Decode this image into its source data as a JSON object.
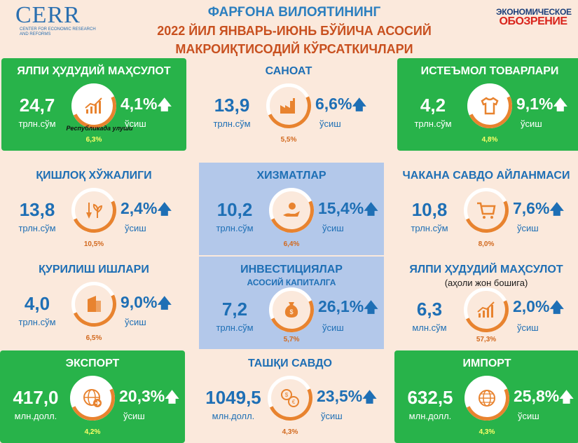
{
  "header": {
    "title_line1": "ФАРҒОНА ВИЛОЯТИНИНГ",
    "title_line2": "2022 ЙИЛ ЯНВАРЬ-ИЮНЬ БЎЙИЧА АСОСИЙ",
    "title_line3": "МАКРОИҚТИСОДИЙ КЎРСАТКИЧЛАРИ",
    "logo_left": "CERR",
    "logo_left_small": "CENTER FOR ECONOMIC RESEARCH AND REFORMS",
    "logo_right_line1": "ЭКОНОМИЧЕСКОЕ",
    "logo_right_line2": "ОБОЗРЕНИЕ"
  },
  "tiles": [
    {
      "name": "ЯЛПИ ҲУДУДИЙ МАҲСУЛОТ",
      "value": "24,7",
      "unit": "трлн.сўм",
      "growth": "4,1%",
      "growth_label": "ўсиш",
      "share_label": "Республикада улуши",
      "share": "6,3%",
      "icon": "chart-growth-icon"
    },
    {
      "name": "САНОАТ",
      "value": "13,9",
      "unit": "трлн.сўм",
      "growth": "6,6%",
      "growth_label": "ўсиш",
      "share": "5,5%",
      "icon": "factory-icon"
    },
    {
      "name": "ИСТЕЪМОЛ ТОВАРЛАРИ",
      "value": "4,2",
      "unit": "трлн.сўм",
      "growth": "9,1%",
      "growth_label": "ўсиш",
      "share": "4,8%",
      "icon": "tshirt-icon"
    },
    {
      "name": "ҚИШЛОҚ ХЎЖАЛИГИ",
      "value": "13,8",
      "unit": "трлн.сўм",
      "growth": "2,4%",
      "growth_label": "ўсиш",
      "share": "10,5%",
      "icon": "shovel-plant-icon"
    },
    {
      "name": "ХИЗМАТЛАР",
      "value": "10,2",
      "unit": "трлн.сўм",
      "growth": "15,4%",
      "growth_label": "ўсиш",
      "share": "6,4%",
      "icon": "service-hand-icon"
    },
    {
      "name": "ЧАКАНА САВДО АЙЛАНМАСИ",
      "value": "10,8",
      "unit": "трлн.сўм",
      "growth": "7,6%",
      "growth_label": "ўсиш",
      "share": "8,0%",
      "icon": "shopping-cart-icon"
    },
    {
      "name": "ҚУРИЛИШ ИШЛАРИ",
      "value": "4,0",
      "unit": "трлн.сўм",
      "growth": "9,0%",
      "growth_label": "ўсиш",
      "share": "6,5%",
      "icon": "building-icon"
    },
    {
      "name": "ИНВЕСТИЦИЯЛАР",
      "sub": "АСОСИЙ КАПИТАЛГА",
      "value": "7,2",
      "unit": "трлн.сўм",
      "growth": "26,1%",
      "growth_label": "ўсиш",
      "share": "5,7%",
      "icon": "money-bag-icon"
    },
    {
      "name": "ЯЛПИ ҲУДУДИЙ МАҲСУЛОТ",
      "sub": "(аҳоли жон бошига)",
      "value": "6,3",
      "unit": "млн.сўм",
      "growth": "2,0%",
      "growth_label": "ўсиш",
      "share": "57,3%",
      "icon": "chart-growth-icon"
    },
    {
      "name": "ЭКСПОРТ",
      "value": "417,0",
      "unit": "млн.долл.",
      "growth": "20,3%",
      "growth_label": "ўсиш",
      "share": "4,2%",
      "icon": "globe-export-icon"
    },
    {
      "name": "ТАШҚИ САВДО",
      "value": "1049,5",
      "unit": "млн.долл.",
      "growth": "23,5%",
      "growth_label": "ўсиш",
      "share": "4,3%",
      "icon": "currency-exchange-icon"
    },
    {
      "name": "ИМПОРТ",
      "value": "632,5",
      "unit": "млн.долл.",
      "growth": "25,8%",
      "growth_label": "ўсиш",
      "share": "4,3%",
      "icon": "globe-import-icon"
    }
  ],
  "colors": {
    "green": "#28b34a",
    "blue_tile": "#b3c8ea",
    "background": "#fbe9dc",
    "accent_orange": "#e8832f",
    "text_blue": "#1e6fb5"
  }
}
